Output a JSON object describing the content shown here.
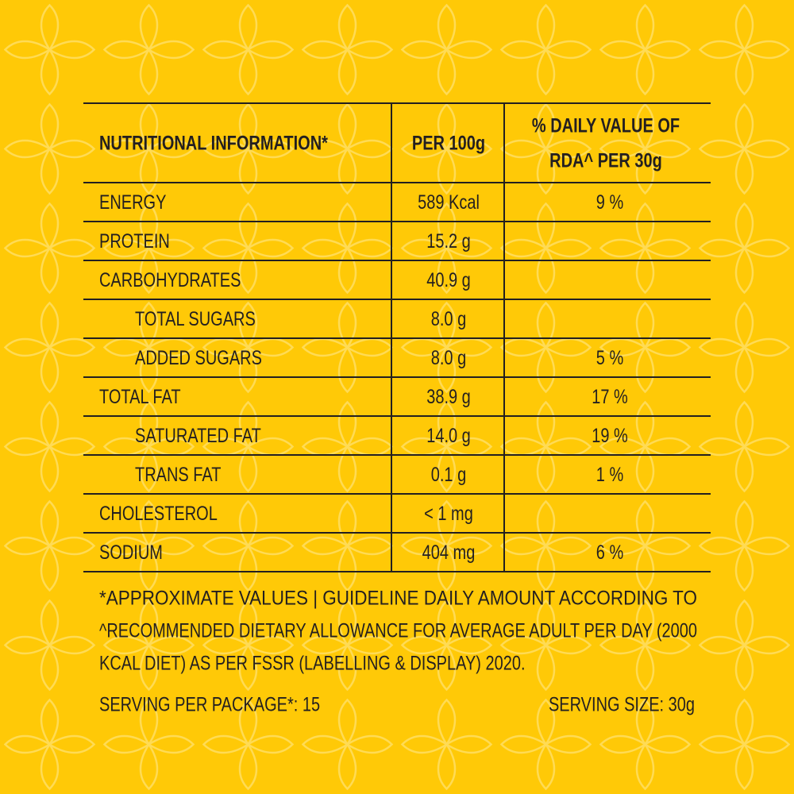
{
  "table": {
    "header": [
      "NUTRITIONAL INFORMATION*",
      "PER 100g",
      [
        "% DAILY VALUE OF",
        "RDA^ PER 30g"
      ]
    ],
    "rows": [
      {
        "name": "ENERGY",
        "per_100g": "589 Kcal",
        "rda": "9 %",
        "level": 0
      },
      {
        "name": "PROTEIN",
        "per_100g": "15.2 g",
        "rda": null,
        "level": 0
      },
      {
        "name": "CARBOHYDRATES",
        "per_100g": "40.9 g",
        "rda": null,
        "level": 0
      },
      {
        "name": "TOTAL SUGARS",
        "per_100g": "8.0 g",
        "rda": null,
        "level": 1
      },
      {
        "name": "ADDED SUGARS",
        "per_100g": "8.0 g",
        "rda": "5 %",
        "level": 1
      },
      {
        "name": "TOTAL FAT",
        "per_100g": "38.9 g",
        "rda": "17 %",
        "level": 0
      },
      {
        "name": "SATURATED FAT",
        "per_100g": "14.0 g",
        "rda": "19 %",
        "level": 1
      },
      {
        "name": "TRANS FAT",
        "per_100g": "0.1 g",
        "rda": "1 %",
        "level": 1
      },
      {
        "name": "CHOLESTEROL",
        "per_100g": "< 1 mg",
        "rda": null,
        "level": 0
      },
      {
        "name": "SODIUM",
        "per_100g": "404 mg",
        "rda": "6 %",
        "level": 0
      }
    ]
  },
  "footnote": [
    "*APPROXIMATE VALUES | GUIDELINE DAILY AMOUNT ACCORDING TO",
    "^RECOMMENDED DIETARY ALLOWANCE FOR AVERAGE ADULT PER DAY (2000",
    "KCAL DIET) AS PER FSSR (LABELLING & DISPLAY) 2020."
  ],
  "serving_per_package": "SERVING PER PACKAGE*: 15",
  "serving_size": "SERVING SIZE: 30g"
}
